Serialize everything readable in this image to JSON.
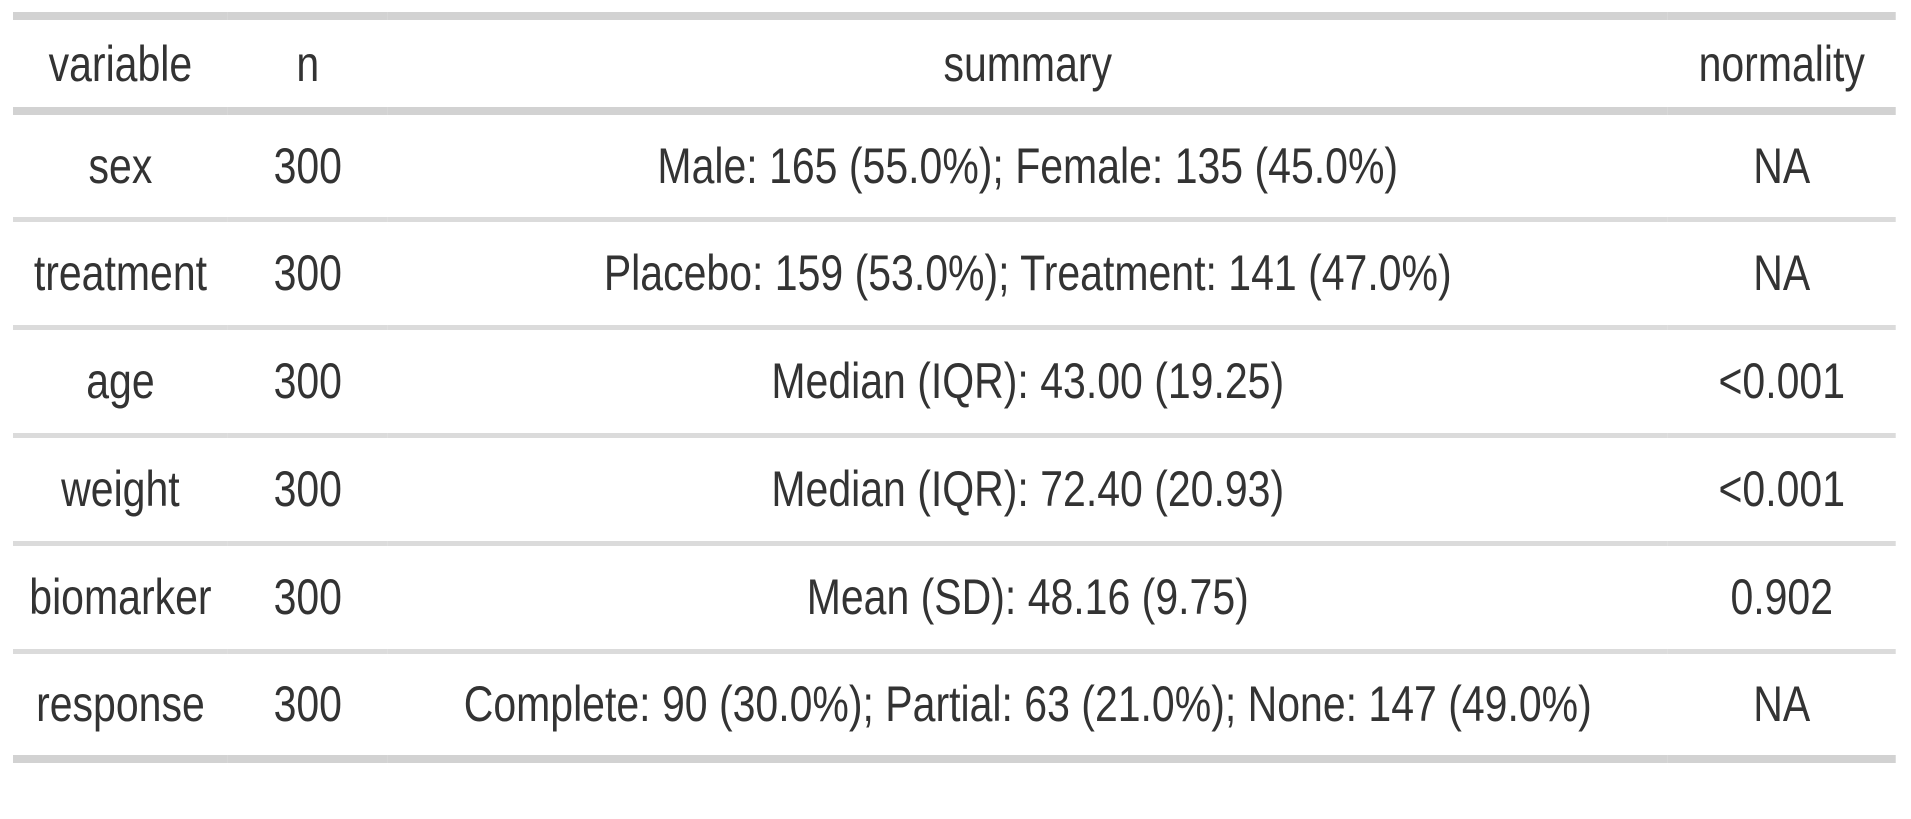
{
  "style": {
    "text_color": "#333333",
    "border_heavy_color": "#d2d2d2",
    "border_light_color": "#dbdbdb",
    "background_color": "#ffffff"
  },
  "chart_data": {
    "type": "table",
    "title": "",
    "columns": [
      "variable",
      "n",
      "summary",
      "normality"
    ],
    "rows": [
      {
        "variable": "sex",
        "n": "300",
        "summary": "Male: 165 (55.0%); Female: 135 (45.0%)",
        "normality": "NA"
      },
      {
        "variable": "treatment",
        "n": "300",
        "summary": "Placebo: 159 (53.0%); Treatment: 141 (47.0%)",
        "normality": "NA"
      },
      {
        "variable": "age",
        "n": "300",
        "summary": "Median (IQR): 43.00 (19.25)",
        "normality": "<0.001"
      },
      {
        "variable": "weight",
        "n": "300",
        "summary": "Median (IQR): 72.40 (20.93)",
        "normality": "<0.001"
      },
      {
        "variable": "biomarker",
        "n": "300",
        "summary": "Mean (SD): 48.16 (9.75)",
        "normality": "0.902"
      },
      {
        "variable": "response",
        "n": "300",
        "summary": "Complete: 90 (30.0%); Partial: 63 (21.0%); None: 147 (49.0%)",
        "normality": "NA"
      }
    ]
  }
}
